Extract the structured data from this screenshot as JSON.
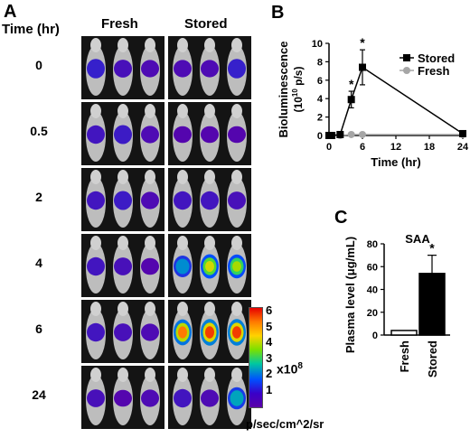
{
  "panel_a": {
    "letter": "A",
    "time_header": "Time (hr)",
    "col_fresh": "Fresh",
    "col_stored": "Stored",
    "rows": [
      "0",
      "0.5",
      "2",
      "4",
      "6",
      "24"
    ],
    "signal_intensity": {
      "fresh": [
        [
          0.3,
          0.15,
          0.1
        ],
        [
          0.2,
          0.25,
          0.1
        ],
        [
          0.2,
          0.25,
          0.1
        ],
        [
          0.2,
          0.15,
          0.05
        ],
        [
          0.2,
          0.15,
          0.1
        ],
        [
          0.15,
          0.05,
          0.1
        ]
      ],
      "stored": [
        [
          0.1,
          0.1,
          0.3
        ],
        [
          0.05,
          0.05,
          0.05
        ],
        [
          0.2,
          0.2,
          0.15
        ],
        [
          0.5,
          0.75,
          0.7
        ],
        [
          0.9,
          0.95,
          0.95
        ],
        [
          0.2,
          0.1,
          0.55
        ]
      ]
    },
    "colorbar": {
      "ticks": [
        "6",
        "5",
        "4",
        "3",
        "2",
        "1"
      ],
      "multiplier": "x10",
      "exponent": "8",
      "unit": "p/sec/cm^2/sr"
    }
  },
  "chart_data": [
    {
      "panel": "B",
      "type": "line",
      "ylabel": "Bioluminescence",
      "ylabel_unit_prefix": "(10",
      "ylabel_unit_exp": "10",
      "ylabel_unit_suffix": " p/s)",
      "xlabel": "Time (hr)",
      "xlim": [
        0,
        24
      ],
      "ylim": [
        0,
        10
      ],
      "xticks": [
        0,
        6,
        12,
        18,
        24
      ],
      "yticks": [
        0,
        2,
        4,
        6,
        8,
        10
      ],
      "series": [
        {
          "name": "Stored",
          "marker": "square",
          "color": "#000000",
          "x": [
            0,
            0.5,
            2,
            4,
            6,
            24
          ],
          "y": [
            0,
            0,
            0.1,
            3.9,
            7.4,
            0.2
          ],
          "err": [
            0,
            0,
            0,
            0.9,
            1.9,
            0
          ]
        },
        {
          "name": "Fresh",
          "marker": "circle",
          "color": "#a6a6a6",
          "x": [
            0,
            0.5,
            2,
            4,
            6,
            24
          ],
          "y": [
            0,
            0,
            0,
            0.1,
            0.1,
            0.1
          ],
          "err": [
            0,
            0,
            0,
            0,
            0,
            0
          ]
        }
      ],
      "significance_marker": "*",
      "significance_x": [
        4,
        6
      ],
      "legend": "top-right"
    },
    {
      "panel": "C",
      "type": "bar",
      "title": "SAA",
      "ylabel_prefix": "Plasma level (",
      "ylabel_mu": "μ",
      "ylabel_suffix": "g/mL)",
      "categories": [
        "Fresh",
        "Stored"
      ],
      "values": [
        4,
        54
      ],
      "errors": [
        0.5,
        16
      ],
      "bar_colors": [
        "#ffffff",
        "#000000"
      ],
      "ylim": [
        0,
        80
      ],
      "yticks": [
        0,
        20,
        40,
        60,
        80
      ],
      "significance_marker": "*"
    }
  ]
}
